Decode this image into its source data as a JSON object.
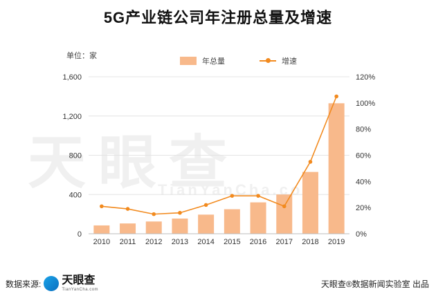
{
  "watermark": {
    "text": "天眼查",
    "sub": "TianYanCha.com"
  },
  "footer": {
    "source_label": "数据来源:",
    "logo_text": "天眼查",
    "logo_sub": "TianYanCha.com",
    "credit": "天眼查®数据新闻实验室 出品"
  },
  "colors": {
    "bar": "#f8b98b",
    "line": "#f28a1e"
  },
  "chart_data": {
    "type": "bar",
    "title": "5G产业链公司年注册总量及增速",
    "unit_label": "单位：家",
    "categories": [
      "2010",
      "2011",
      "2012",
      "2013",
      "2014",
      "2015",
      "2016",
      "2017",
      "2018",
      "2019"
    ],
    "series": [
      {
        "name": "年总量",
        "type": "bar",
        "axis": "left",
        "values": [
          85,
          105,
          125,
          155,
          195,
          250,
          320,
          400,
          630,
          1330
        ]
      },
      {
        "name": "增速",
        "type": "line",
        "axis": "right",
        "values": [
          21,
          19,
          15,
          16,
          22,
          29,
          29,
          21,
          55,
          105
        ]
      }
    ],
    "y_left": {
      "ticks": [
        "0",
        "400",
        "800",
        "1,200",
        "1,600"
      ],
      "min": 0,
      "max": 1600
    },
    "y_right": {
      "ticks": [
        "0%",
        "20%",
        "40%",
        "60%",
        "80%",
        "100%",
        "120%"
      ],
      "min": 0,
      "max": 120
    },
    "legend_position": "top"
  }
}
